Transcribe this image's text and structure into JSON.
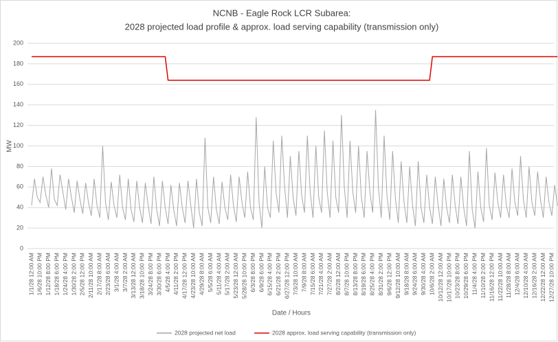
{
  "chart_data": {
    "type": "line",
    "title": "NCNB - Eagle Rock LCR Subarea:",
    "subtitle": "2028 projected load profile & approx. load serving capability (transmission only)",
    "y_label": "MW",
    "x_label": "Date / Hours",
    "categories": [
      "1/1/28 12:00 AM",
      null,
      null,
      "1/6/28 10:00 PM",
      null,
      null,
      "1/12/28 8:00 PM",
      null,
      null,
      "1/18/28 6:00 PM",
      null,
      null,
      "1/24/28 4:00 PM",
      null,
      null,
      "1/30/28 2:00 PM",
      null,
      null,
      "2/5/28 12:00 PM",
      null,
      null,
      "2/11/28 10:00 AM",
      null,
      null,
      "2/17/28 8:00 AM",
      null,
      null,
      "2/23/28 6:00 AM",
      null,
      null,
      "3/1/28 4:00 AM",
      null,
      null,
      "3/7/28 2:00 AM",
      null,
      null,
      "3/13/28 12:00 AM",
      null,
      null,
      "3/18/28 10:00 PM",
      null,
      null,
      "3/24/28 8:00 PM",
      null,
      null,
      "3/30/28 6:00 PM",
      null,
      null,
      "4/5/28 4:00 PM",
      null,
      null,
      "4/11/28 2:00 PM",
      null,
      null,
      "4/17/28 12:00 PM",
      null,
      null,
      "4/23/28 10:00 AM",
      null,
      null,
      "4/29/28 8:00 AM",
      null,
      null,
      "5/5/28 6:00 AM",
      null,
      null,
      "5/11/28 4:00 AM",
      null,
      null,
      "5/17/28 2:00 AM",
      null,
      null,
      "5/23/28 12:00 AM",
      null,
      null,
      "5/28/28 10:00 PM",
      null,
      null,
      "6/3/28 8:00 PM",
      null,
      null,
      "6/9/28 6:00 PM",
      null,
      null,
      "6/15/28 4:00 PM",
      null,
      null,
      "6/21/28 2:00 PM",
      null,
      null,
      "6/27/28 12:00 PM",
      null,
      null,
      "7/3/28 10:00 AM",
      null,
      null,
      "7/9/28 8:00 AM",
      null,
      null,
      "7/15/28 6:00 AM",
      null,
      null,
      "7/21/28 4:00 AM",
      null,
      null,
      "7/27/28 2:00 AM",
      null,
      null,
      "8/2/28 12:00 AM",
      null,
      null,
      "8/7/28 10:00 PM",
      null,
      null,
      "8/13/28 8:00 PM",
      null,
      null,
      "8/19/28 6:00 PM",
      null,
      null,
      "8/25/28 4:00 PM",
      null,
      null,
      "8/31/28 2:00 PM",
      null,
      null,
      "9/6/28 12:00 PM",
      null,
      null,
      "9/12/28 10:00 AM",
      null,
      null,
      "9/18/28 8:00 AM",
      null,
      null,
      "9/24/28 6:00 AM",
      null,
      null,
      "9/30/28 4:00 AM",
      null,
      null,
      "10/6/28 2:00 AM",
      null,
      null,
      "10/12/28 12:00 AM",
      null,
      null,
      "10/17/28 10:00 PM",
      null,
      null,
      "10/23/28 8:00 PM",
      null,
      null,
      "10/29/28 6:00 PM",
      null,
      null,
      "11/4/28 4:00 PM",
      null,
      null,
      "11/10/28 2:00 PM",
      null,
      null,
      "11/16/28 12:00 PM",
      null,
      null,
      "11/22/28 10:00 AM",
      null,
      null,
      "11/28/28 8:00 AM",
      null,
      null,
      "12/4/28 6:00 AM",
      null,
      null,
      "12/10/28 4:00 AM",
      null,
      null,
      "12/16/28 2:00 AM",
      null,
      null,
      "12/22/28 12:00 AM",
      null,
      null,
      "12/27/28 10:00 PM",
      null,
      null
    ],
    "series": [
      {
        "name": "2028 projected net load",
        "color": "#a6a6a6",
        "values": [
          42,
          68,
          50,
          45,
          70,
          52,
          40,
          78,
          48,
          42,
          72,
          55,
          38,
          68,
          50,
          35,
          66,
          48,
          34,
          64,
          45,
          32,
          68,
          42,
          30,
          100,
          45,
          28,
          65,
          42,
          30,
          72,
          40,
          28,
          68,
          38,
          26,
          66,
          40,
          25,
          64,
          42,
          24,
          70,
          38,
          22,
          66,
          40,
          24,
          62,
          38,
          22,
          64,
          40,
          25,
          66,
          42,
          20,
          68,
          35,
          22,
          108,
          40,
          25,
          70,
          38,
          24,
          65,
          40,
          28,
          72,
          42,
          26,
          70,
          45,
          30,
          75,
          40,
          28,
          128,
          45,
          20,
          80,
          40,
          30,
          105,
          55,
          35,
          110,
          60,
          30,
          90,
          50,
          32,
          95,
          52,
          35,
          110,
          55,
          30,
          100,
          50,
          35,
          115,
          55,
          30,
          105,
          50,
          35,
          130,
          60,
          30,
          105,
          55,
          35,
          100,
          50,
          30,
          95,
          55,
          35,
          135,
          60,
          30,
          110,
          52,
          28,
          95,
          48,
          25,
          85,
          45,
          25,
          80,
          42,
          22,
          85,
          40,
          25,
          72,
          40,
          24,
          70,
          42,
          22,
          68,
          40,
          25,
          72,
          42,
          24,
          70,
          40,
          22,
          95,
          38,
          20,
          75,
          40,
          26,
          98,
          42,
          28,
          74,
          45,
          30,
          72,
          42,
          30,
          78,
          45,
          32,
          90,
          48,
          30,
          80,
          45,
          32,
          75,
          48,
          30,
          70,
          45,
          32,
          62,
          42
        ]
      },
      {
        "name": "2028 approx. load serving  capability (transmission only)",
        "color": "#e00000",
        "values": [
          187,
          187,
          187,
          187,
          187,
          187,
          187,
          187,
          187,
          187,
          187,
          187,
          187,
          187,
          187,
          187,
          187,
          187,
          187,
          187,
          187,
          187,
          187,
          187,
          187,
          187,
          187,
          187,
          187,
          187,
          187,
          187,
          187,
          187,
          187,
          187,
          187,
          187,
          187,
          187,
          187,
          187,
          187,
          187,
          187,
          187,
          187,
          187,
          164,
          164,
          164,
          164,
          164,
          164,
          164,
          164,
          164,
          164,
          164,
          164,
          164,
          164,
          164,
          164,
          164,
          164,
          164,
          164,
          164,
          164,
          164,
          164,
          164,
          164,
          164,
          164,
          164,
          164,
          164,
          164,
          164,
          164,
          164,
          164,
          164,
          164,
          164,
          164,
          164,
          164,
          164,
          164,
          164,
          164,
          164,
          164,
          164,
          164,
          164,
          164,
          164,
          164,
          164,
          164,
          164,
          164,
          164,
          164,
          164,
          164,
          164,
          164,
          164,
          164,
          164,
          164,
          164,
          164,
          164,
          164,
          164,
          164,
          164,
          164,
          164,
          164,
          164,
          164,
          164,
          164,
          164,
          164,
          164,
          164,
          164,
          164,
          164,
          164,
          164,
          164,
          164,
          187,
          187,
          187,
          187,
          187,
          187,
          187,
          187,
          187,
          187,
          187,
          187,
          187,
          187,
          187,
          187,
          187,
          187,
          187,
          187,
          187,
          187,
          187,
          187,
          187,
          187,
          187,
          187,
          187,
          187,
          187,
          187,
          187,
          187,
          187,
          187,
          187,
          187,
          187,
          187,
          187,
          187,
          187,
          187,
          187
        ]
      }
    ],
    "ylim": [
      0,
      200
    ],
    "yticks": [
      0,
      20,
      40,
      60,
      80,
      100,
      120,
      140,
      160,
      180,
      200
    ],
    "grid": true,
    "legend": "bottom"
  }
}
